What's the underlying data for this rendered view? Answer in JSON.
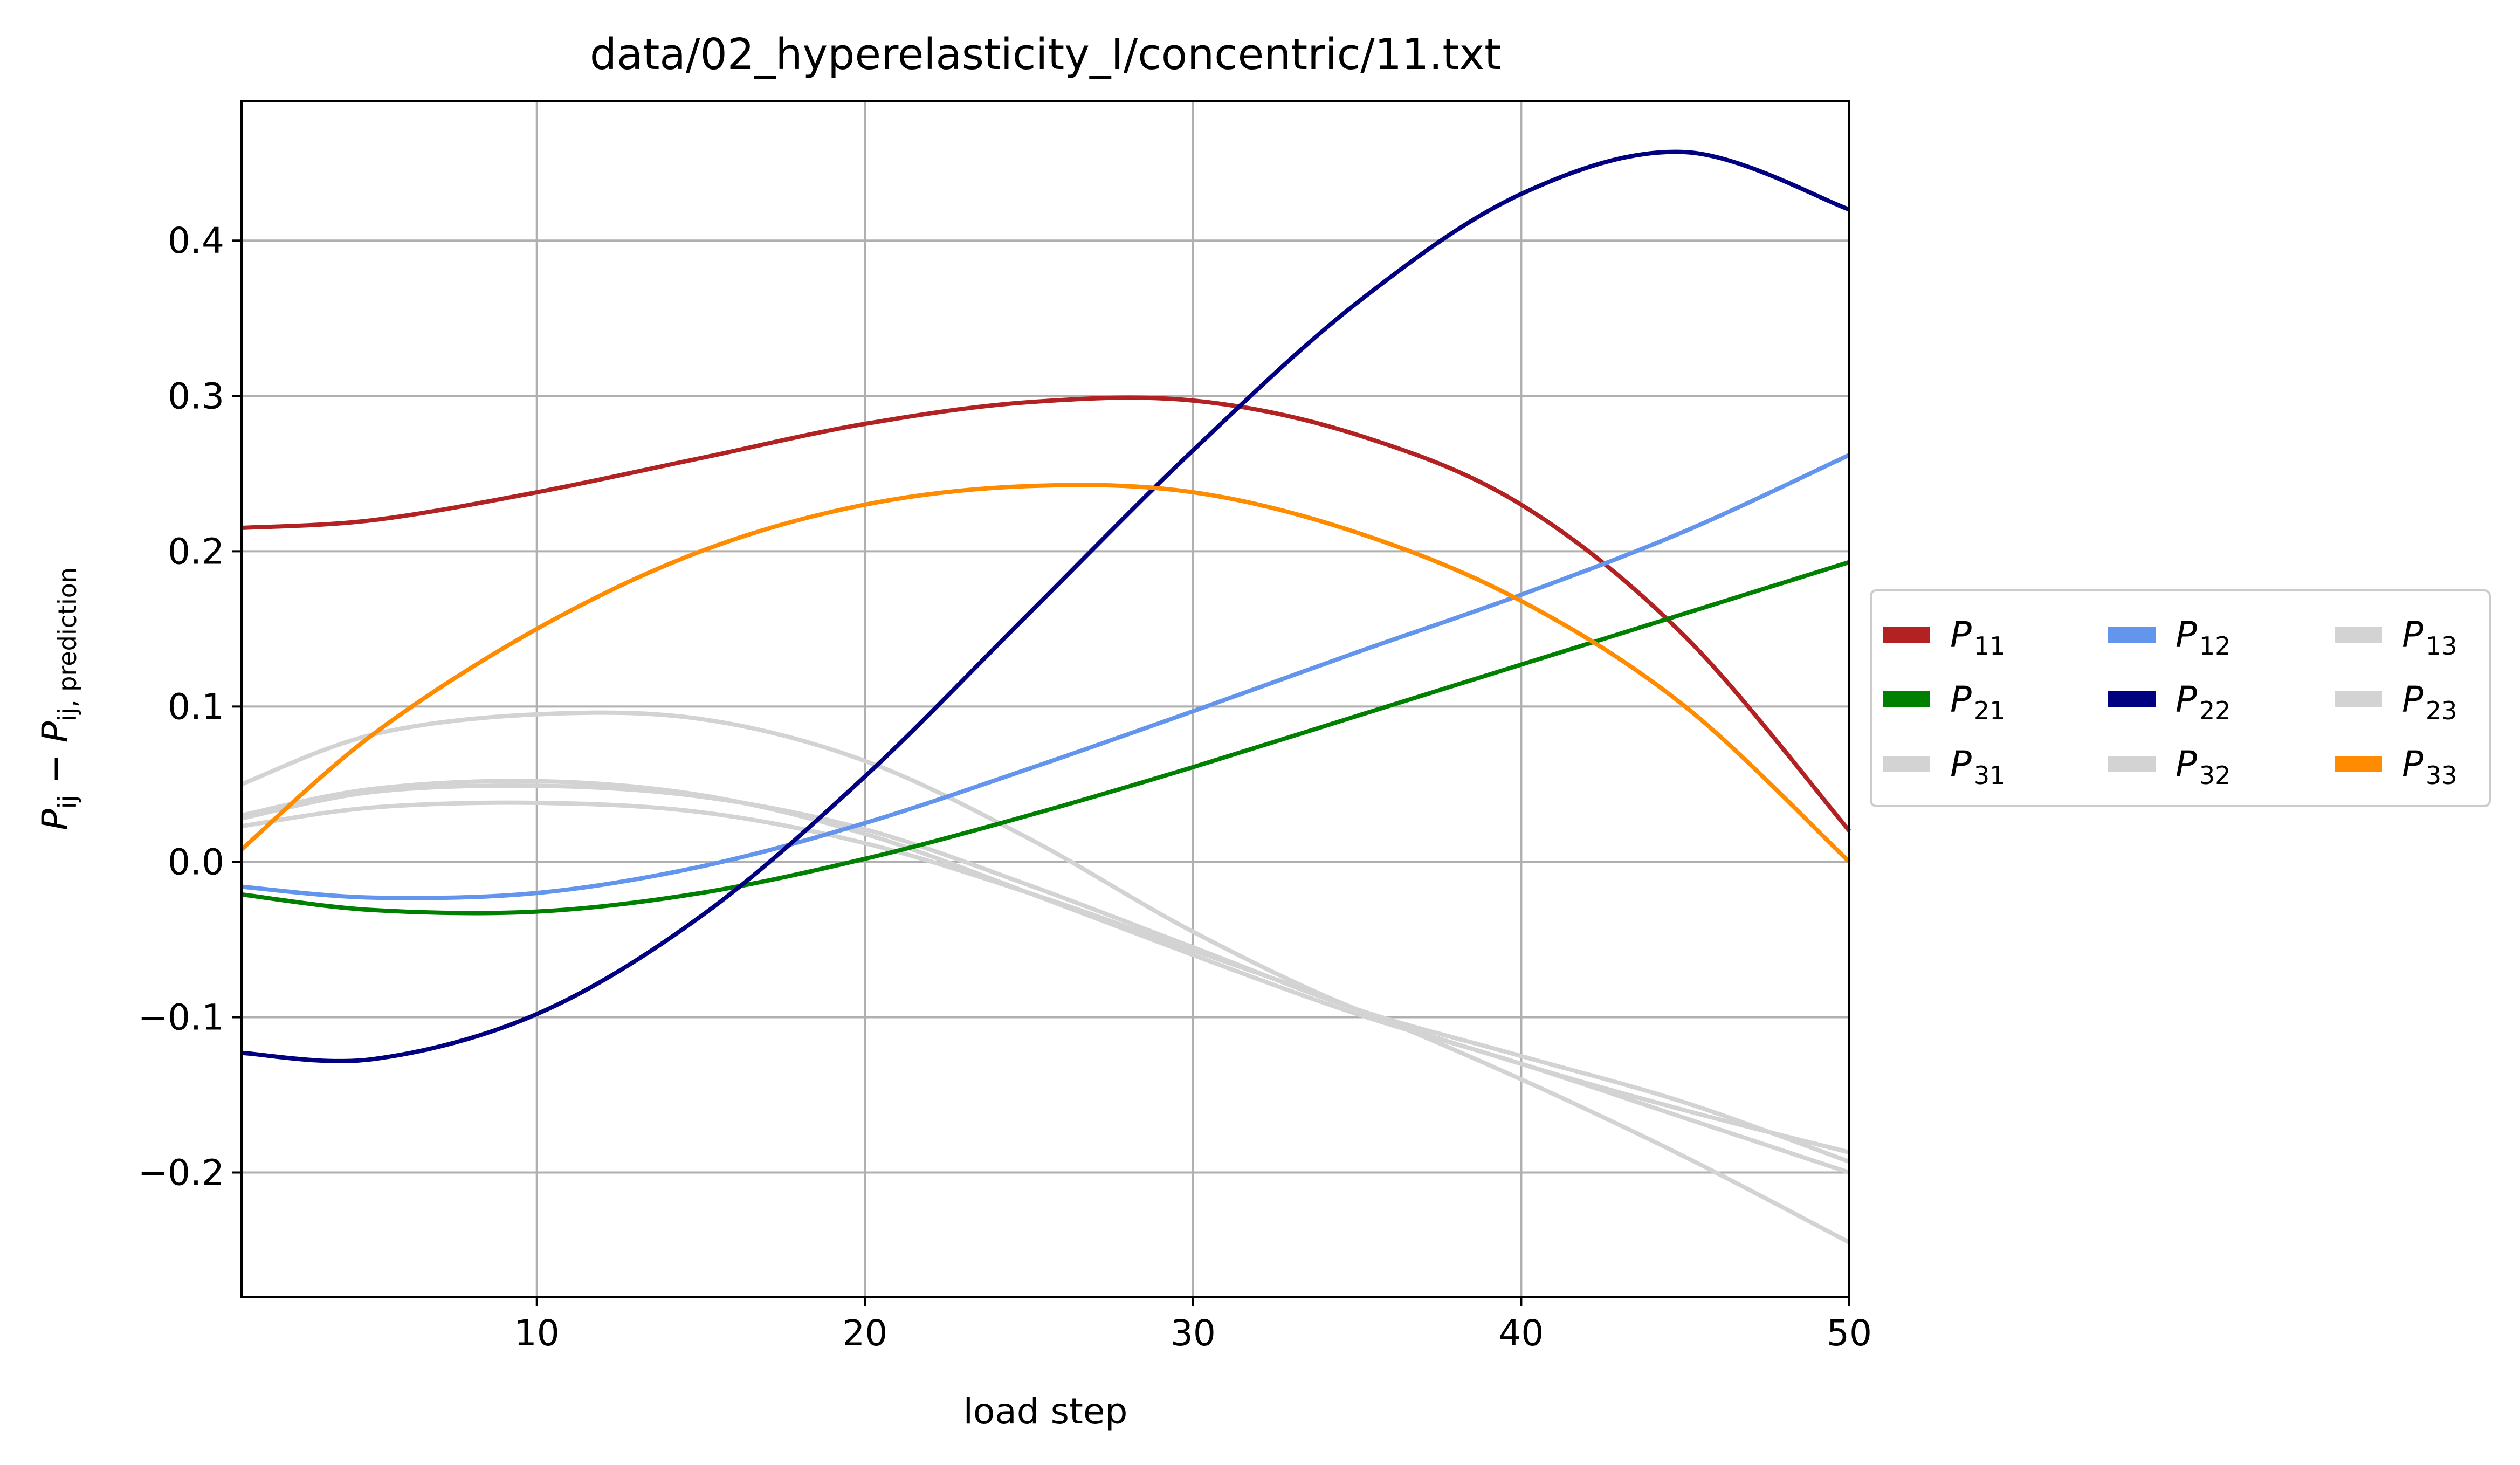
{
  "chart_data": {
    "type": "line",
    "title": "data/02_hyperelasticity_I/concentric/11.txt",
    "xlabel": "load step",
    "ylabel": {
      "base": "P",
      "sub1": "ij",
      "minus": " − ",
      "sub2": "ij, prediction"
    },
    "xlim": [
      1,
      50
    ],
    "ylim": [
      -0.28,
      0.49
    ],
    "xticks": [
      10,
      20,
      30,
      40,
      50
    ],
    "xtick_labels": [
      "10",
      "20",
      "30",
      "40",
      "50"
    ],
    "yticks": [
      -0.2,
      -0.1,
      0.0,
      0.1,
      0.2,
      0.3,
      0.4
    ],
    "ytick_labels": [
      "−0.2",
      "−0.1",
      "0.0",
      "0.1",
      "0.2",
      "0.3",
      "0.4"
    ],
    "grid": true,
    "legend_position": "outside-right",
    "legend_columns": 3,
    "x": [
      1,
      5,
      10,
      15,
      20,
      25,
      30,
      35,
      40,
      45,
      50
    ],
    "series": [
      {
        "name": "P",
        "sub": "11",
        "color": "#b22222",
        "values": [
          0.215,
          0.22,
          0.238,
          0.26,
          0.282,
          0.296,
          0.297,
          0.275,
          0.23,
          0.145,
          0.02
        ]
      },
      {
        "name": "P",
        "sub": "21",
        "color": "#008000",
        "values": [
          -0.021,
          -0.031,
          -0.032,
          -0.02,
          0.002,
          0.03,
          0.061,
          0.094,
          0.127,
          0.16,
          0.193
        ]
      },
      {
        "name": "P",
        "sub": "31",
        "color": "#d3d3d3",
        "values": [
          0.05,
          0.082,
          0.095,
          0.092,
          0.065,
          0.015,
          -0.045,
          -0.095,
          -0.13,
          -0.16,
          -0.187
        ]
      },
      {
        "name": "P",
        "sub": "12",
        "color": "#6495ed",
        "values": [
          -0.016,
          -0.023,
          -0.02,
          -0.003,
          0.025,
          0.06,
          0.097,
          0.135,
          0.172,
          0.213,
          0.262
        ]
      },
      {
        "name": "P",
        "sub": "22",
        "color": "#000080",
        "values": [
          -0.123,
          -0.127,
          -0.098,
          -0.035,
          0.055,
          0.16,
          0.265,
          0.36,
          0.43,
          0.457,
          0.42
        ]
      },
      {
        "name": "P",
        "sub": "32",
        "color": "#d3d3d3",
        "values": [
          0.03,
          0.047,
          0.052,
          0.043,
          0.018,
          -0.02,
          -0.06,
          -0.098,
          -0.13,
          -0.165,
          -0.2
        ]
      },
      {
        "name": "P",
        "sub": "13",
        "color": "#d3d3d3",
        "values": [
          0.023,
          0.035,
          0.038,
          0.032,
          0.012,
          -0.02,
          -0.057,
          -0.095,
          -0.14,
          -0.19,
          -0.245
        ]
      },
      {
        "name": "P",
        "sub": "23",
        "color": "#d3d3d3",
        "values": [
          0.028,
          0.045,
          0.049,
          0.042,
          0.021,
          -0.015,
          -0.055,
          -0.095,
          -0.125,
          -0.155,
          -0.193
        ]
      },
      {
        "name": "P",
        "sub": "33",
        "color": "#ff8c00",
        "values": [
          0.008,
          0.082,
          0.15,
          0.2,
          0.23,
          0.242,
          0.238,
          0.212,
          0.168,
          0.1,
          0.0
        ]
      }
    ]
  }
}
